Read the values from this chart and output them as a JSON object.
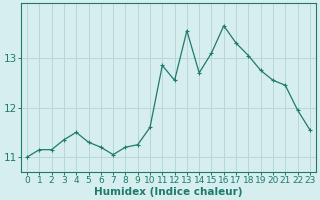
{
  "x": [
    0,
    1,
    2,
    3,
    4,
    5,
    6,
    7,
    8,
    9,
    10,
    11,
    12,
    13,
    14,
    15,
    16,
    17,
    18,
    19,
    20,
    21,
    22,
    23
  ],
  "y": [
    11.0,
    11.15,
    11.15,
    11.35,
    11.5,
    11.3,
    11.2,
    11.05,
    11.2,
    11.25,
    11.6,
    12.85,
    12.55,
    13.55,
    12.7,
    13.1,
    13.65,
    13.3,
    13.05,
    12.75,
    12.55,
    12.45,
    11.95,
    11.55
  ],
  "line_color": "#1f7a6e",
  "marker": "+",
  "xlabel": "Humidex (Indice chaleur)",
  "bg_color": "#d6eeee",
  "grid_color": "#b8d8d8",
  "axis_color": "#1f7a6e",
  "text_color": "#1f7a6e",
  "ylim": [
    10.7,
    14.1
  ],
  "xlim": [
    -0.5,
    23.5
  ],
  "yticks": [
    11,
    12,
    13
  ],
  "xticks": [
    0,
    1,
    2,
    3,
    4,
    5,
    6,
    7,
    8,
    9,
    10,
    11,
    12,
    13,
    14,
    15,
    16,
    17,
    18,
    19,
    20,
    21,
    22,
    23
  ],
  "xlabel_fontsize": 7.5,
  "tick_fontsize": 6.5,
  "ytick_fontsize": 7.5,
  "linewidth": 0.9,
  "markersize": 3
}
